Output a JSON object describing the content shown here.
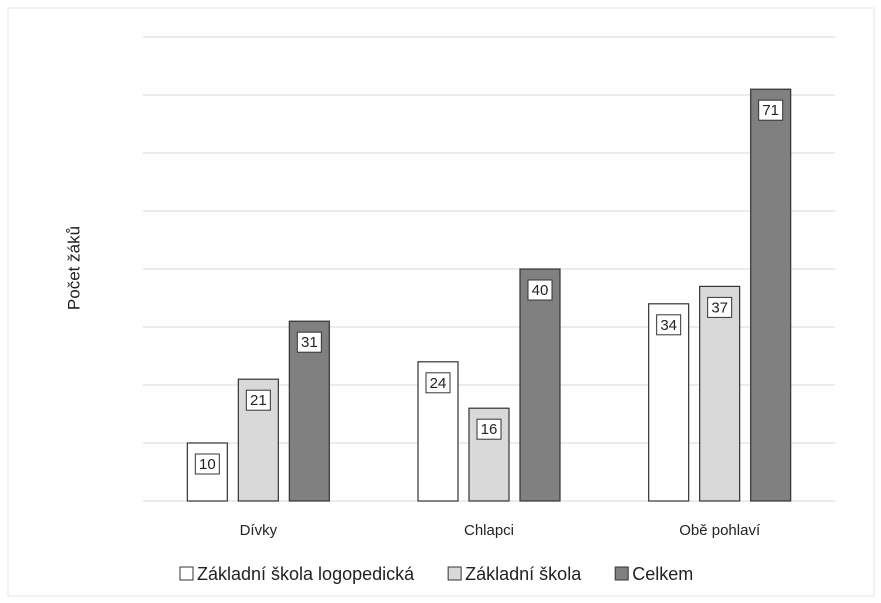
{
  "chart_data": {
    "type": "bar",
    "y_label": "Počet žáků",
    "categories": [
      "Dívky",
      "Chlapci",
      "Obě pohlaví"
    ],
    "series": [
      {
        "name": "Základní škola logopedická",
        "color": "#ffffff",
        "values": [
          10,
          24,
          34
        ]
      },
      {
        "name": "Základní škola",
        "color": "#d9d9d9",
        "values": [
          21,
          16,
          37
        ]
      },
      {
        "name": "Celkem",
        "color": "#808080",
        "values": [
          31,
          40,
          71
        ]
      }
    ],
    "ylim": [
      0,
      80
    ],
    "yticks": [
      0,
      10,
      20,
      30,
      40,
      50,
      60,
      70,
      80
    ],
    "grid": true,
    "legend": "bottom"
  }
}
